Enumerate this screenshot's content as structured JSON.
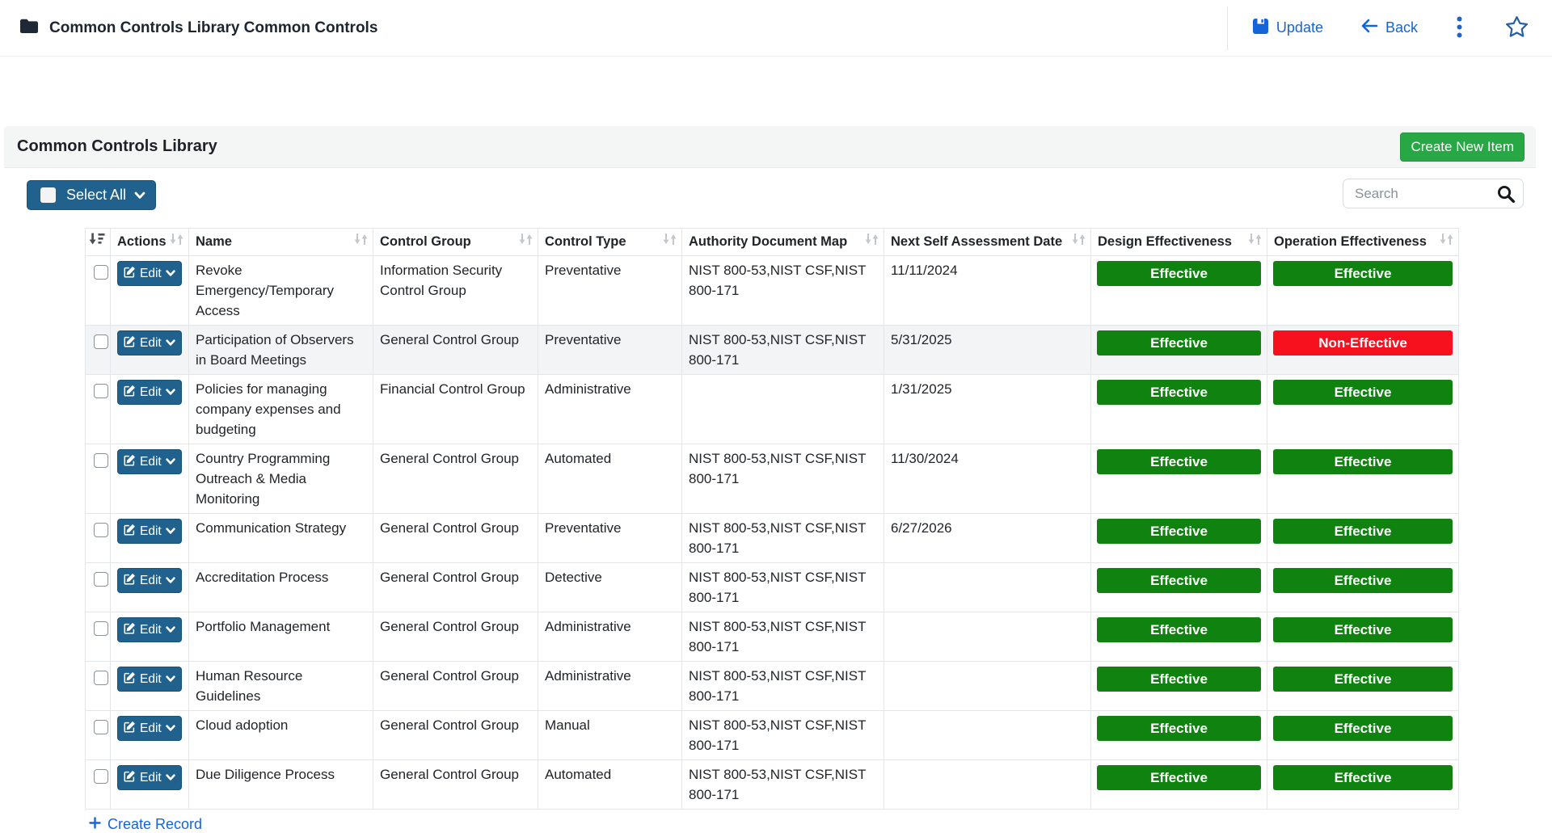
{
  "topbar": {
    "title": "Common Controls Library Common Controls",
    "update_label": "Update",
    "back_label": "Back"
  },
  "panel": {
    "title": "Common Controls Library",
    "create_new_item_label": "Create New Item",
    "select_all_label": "Select All",
    "search_placeholder": "Search",
    "quick_create_label": "Create Record"
  },
  "table": {
    "edit_label": "Edit",
    "columns": [
      "Actions",
      "Name",
      "Control Group",
      "Control Type",
      "Authority Document Map",
      "Next Self Assessment Date",
      "Design Effectiveness",
      "Operation Effectiveness"
    ],
    "rows": [
      {
        "name": "Revoke Emergency/Temporary Access",
        "control_group": "Information Security Control Group",
        "control_type": "Preventative",
        "authority_document_map": "NIST 800-53,NIST CSF,NIST 800-171",
        "next_self_assessment_date": "11/11/2024",
        "design_effectiveness": "Effective",
        "operation_effectiveness": "Effective",
        "highlighted": false
      },
      {
        "name": "Participation of Observers in Board Meetings",
        "control_group": "General Control Group",
        "control_type": "Preventative",
        "authority_document_map": "NIST 800-53,NIST CSF,NIST 800-171",
        "next_self_assessment_date": "5/31/2025",
        "design_effectiveness": "Effective",
        "operation_effectiveness": "Non-Effective",
        "highlighted": true
      },
      {
        "name": "Policies for managing company expenses and budgeting",
        "control_group": "Financial Control Group",
        "control_type": "Administrative",
        "authority_document_map": "",
        "next_self_assessment_date": "1/31/2025",
        "design_effectiveness": "Effective",
        "operation_effectiveness": "Effective",
        "highlighted": false
      },
      {
        "name": "Country Programming Outreach & Media Monitoring",
        "control_group": "General Control Group",
        "control_type": "Automated",
        "authority_document_map": "NIST 800-53,NIST CSF,NIST 800-171",
        "next_self_assessment_date": "11/30/2024",
        "design_effectiveness": "Effective",
        "operation_effectiveness": "Effective",
        "highlighted": false
      },
      {
        "name": "Communication Strategy",
        "control_group": "General Control Group",
        "control_type": "Preventative",
        "authority_document_map": "NIST 800-53,NIST CSF,NIST 800-171",
        "next_self_assessment_date": "6/27/2026",
        "design_effectiveness": "Effective",
        "operation_effectiveness": "Effective",
        "highlighted": false
      },
      {
        "name": "Accreditation Process",
        "control_group": "General Control Group",
        "control_type": "Detective",
        "authority_document_map": "NIST 800-53,NIST CSF,NIST 800-171",
        "next_self_assessment_date": "",
        "design_effectiveness": "Effective",
        "operation_effectiveness": "Effective",
        "highlighted": false
      },
      {
        "name": "Portfolio Management",
        "control_group": "General Control Group",
        "control_type": "Administrative",
        "authority_document_map": "NIST 800-53,NIST CSF,NIST 800-171",
        "next_self_assessment_date": "",
        "design_effectiveness": "Effective",
        "operation_effectiveness": "Effective",
        "highlighted": false
      },
      {
        "name": "Human Resource Guidelines",
        "control_group": "General Control Group",
        "control_type": "Administrative",
        "authority_document_map": "NIST 800-53,NIST CSF,NIST 800-171",
        "next_self_assessment_date": "",
        "design_effectiveness": "Effective",
        "operation_effectiveness": "Effective",
        "highlighted": false
      },
      {
        "name": "Cloud adoption",
        "control_group": "General Control Group",
        "control_type": "Manual",
        "authority_document_map": "NIST 800-53,NIST CSF,NIST 800-171",
        "next_self_assessment_date": "",
        "design_effectiveness": "Effective",
        "operation_effectiveness": "Effective",
        "highlighted": false
      },
      {
        "name": "Due Diligence Process",
        "control_group": "General Control Group",
        "control_type": "Automated",
        "authority_document_map": "NIST 800-53,NIST CSF,NIST 800-171",
        "next_self_assessment_date": "",
        "design_effectiveness": "Effective",
        "operation_effectiveness": "Effective",
        "highlighted": false
      }
    ]
  },
  "colors": {
    "effective_badge": "#108210",
    "non_effective_badge": "#f7101d",
    "primary_button_blue": "#20618D",
    "create_button_green": "#28a745",
    "link_blue": "#1565d8"
  },
  "icons": {
    "topbar_left": "folder-icon",
    "topbar_right": [
      "save-icon",
      "arrow-left-icon",
      "kebab-menu-icon",
      "star-icon"
    ],
    "toolbar": [
      "checkbox",
      "chevron-down-icon",
      "search-icon"
    ],
    "table": [
      "sort-amount-icon",
      "sort-arrows-icon",
      "edit-pencil-square-icon"
    ]
  }
}
